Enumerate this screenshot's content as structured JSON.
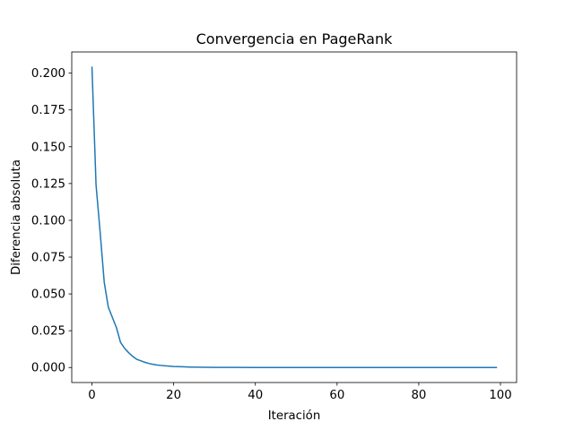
{
  "chart_data": {
    "type": "line",
    "title": "Convergencia en PageRank",
    "xlabel": "Iteración",
    "ylabel": "Diferencia absoluta",
    "xlim": [
      -4.95,
      103.95
    ],
    "ylim": [
      -0.0102,
      0.2144
    ],
    "xticks": [
      0,
      20,
      40,
      60,
      80,
      100
    ],
    "xtick_labels": [
      "0",
      "20",
      "40",
      "60",
      "80",
      "100"
    ],
    "yticks": [
      0.0,
      0.025,
      0.05,
      0.075,
      0.1,
      0.125,
      0.15,
      0.175,
      0.2
    ],
    "ytick_labels": [
      "0.000",
      "0.025",
      "0.050",
      "0.075",
      "0.100",
      "0.125",
      "0.150",
      "0.175",
      "0.200"
    ],
    "grid": false,
    "legend": "none",
    "series": [
      {
        "color": "#1f77b4",
        "x": [
          0,
          1,
          2,
          3,
          4,
          5,
          6,
          7,
          8,
          9,
          10,
          11,
          12,
          13,
          14,
          15,
          16,
          17,
          18,
          19,
          20,
          22,
          24,
          26,
          28,
          30,
          35,
          40,
          50,
          60,
          70,
          80,
          90,
          99
        ],
        "y": [
          0.204,
          0.124,
          0.092,
          0.058,
          0.041,
          0.034,
          0.027,
          0.017,
          0.013,
          0.01,
          0.0075,
          0.0055,
          0.0045,
          0.0035,
          0.0027,
          0.0021,
          0.0017,
          0.0014,
          0.0011,
          0.0009,
          0.0007,
          0.0005,
          0.0003,
          0.0002,
          0.00015,
          0.0001,
          5e-05,
          3e-05,
          1e-05,
          0.0,
          0.0,
          0.0,
          0.0,
          0.0
        ]
      }
    ]
  }
}
